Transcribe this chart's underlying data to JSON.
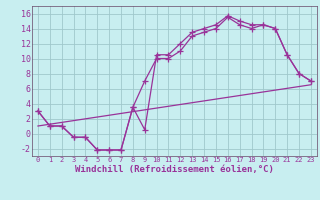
{
  "xlabel": "Windchill (Refroidissement éolien,°C)",
  "background_color": "#c8eef0",
  "grid_color": "#a0c8cc",
  "line_color": "#993399",
  "spine_color": "#664466",
  "tick_color": "#993399",
  "xlim": [
    -0.5,
    23.5
  ],
  "ylim": [
    -3,
    17
  ],
  "xticks": [
    0,
    1,
    2,
    3,
    4,
    5,
    6,
    7,
    8,
    9,
    10,
    11,
    12,
    13,
    14,
    15,
    16,
    17,
    18,
    19,
    20,
    21,
    22,
    23
  ],
  "yticks": [
    -2,
    0,
    2,
    4,
    6,
    8,
    10,
    12,
    14,
    16
  ],
  "line1_x": [
    0,
    1,
    2,
    3,
    4,
    5,
    6,
    7,
    8,
    9,
    10,
    11,
    12,
    13,
    14,
    15,
    16,
    17,
    18,
    19,
    20,
    21,
    22,
    23
  ],
  "line1_y": [
    3,
    1,
    1,
    -0.5,
    -0.5,
    -2.2,
    -2.2,
    -2.2,
    3.5,
    0.5,
    10.5,
    10.5,
    12,
    13.5,
    14,
    14.5,
    15.7,
    15,
    14.5,
    14.5,
    14,
    10.5,
    8,
    7
  ],
  "line2_x": [
    0,
    1,
    2,
    3,
    4,
    5,
    6,
    7,
    8,
    9,
    10,
    11,
    12,
    13,
    14,
    15,
    16,
    17,
    18,
    19,
    20,
    21,
    22,
    23
  ],
  "line2_y": [
    3,
    1,
    1,
    -0.5,
    -0.5,
    -2.2,
    -2.2,
    -2.2,
    3.5,
    7,
    10,
    10,
    11,
    13,
    13.5,
    14,
    15.5,
    14.5,
    14,
    14.5,
    14,
    10.5,
    8,
    7
  ],
  "line3_x": [
    0,
    23
  ],
  "line3_y": [
    1,
    6.5
  ],
  "marker_size": 4,
  "lw": 0.9
}
